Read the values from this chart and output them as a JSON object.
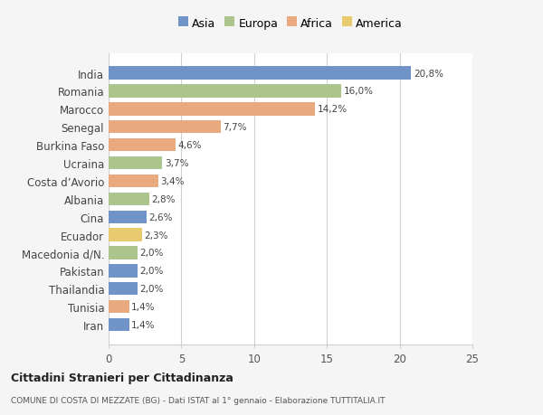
{
  "categories": [
    "India",
    "Romania",
    "Marocco",
    "Senegal",
    "Burkina Faso",
    "Ucraina",
    "Costa d’Avorio",
    "Albania",
    "Cina",
    "Ecuador",
    "Macedonia d/N.",
    "Pakistan",
    "Thailandia",
    "Tunisia",
    "Iran"
  ],
  "values": [
    20.8,
    16.0,
    14.2,
    7.7,
    4.6,
    3.7,
    3.4,
    2.8,
    2.6,
    2.3,
    2.0,
    2.0,
    2.0,
    1.4,
    1.4
  ],
  "labels": [
    "20,8%",
    "16,0%",
    "14,2%",
    "7,7%",
    "4,6%",
    "3,7%",
    "3,4%",
    "2,8%",
    "2,6%",
    "2,3%",
    "2,0%",
    "2,0%",
    "2,0%",
    "1,4%",
    "1,4%"
  ],
  "colors": [
    "#7094c8",
    "#adc48d",
    "#e8aa7e",
    "#e8aa7e",
    "#e8aa7e",
    "#adc48d",
    "#e8aa7e",
    "#adc48d",
    "#7094c8",
    "#e8cb6e",
    "#adc48d",
    "#7094c8",
    "#7094c8",
    "#e8aa7e",
    "#7094c8"
  ],
  "continent_colors": {
    "Asia": "#7094c8",
    "Europa": "#adc48d",
    "Africa": "#e8aa7e",
    "America": "#e8cb6e"
  },
  "legend_labels": [
    "Asia",
    "Europa",
    "Africa",
    "America"
  ],
  "xlim": [
    0,
    25
  ],
  "xticks": [
    0,
    5,
    10,
    15,
    20,
    25
  ],
  "title1": "Cittadini Stranieri per Cittadinanza",
  "title2": "COMUNE DI COSTA DI MEZZATE (BG) - Dati ISTAT al 1° gennaio - Elaborazione TUTTITALIA.IT",
  "background_color": "#f5f5f5",
  "bar_background": "#ffffff",
  "grid_color": "#d0d0d0"
}
